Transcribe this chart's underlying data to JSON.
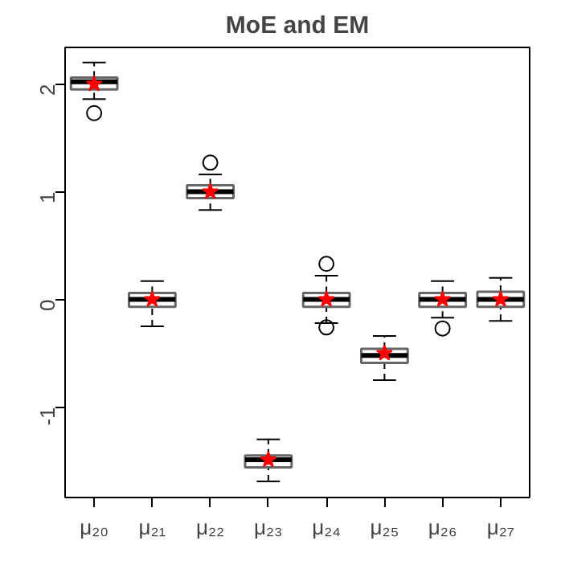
{
  "chart_data": {
    "type": "box",
    "title": "MoE and EM",
    "categories": [
      "μ₂₀",
      "μ₂₁",
      "μ₂₂",
      "μ₂₃",
      "μ₂₄",
      "μ₂₅",
      "μ₂₆",
      "μ₂₇"
    ],
    "ylim": [
      -1.84,
      2.34
    ],
    "yticks": [
      -1,
      0,
      1,
      2
    ],
    "marker": "star",
    "boxes": [
      {
        "low": 1.86,
        "q1": 1.95,
        "median": 2.02,
        "q3": 2.06,
        "high": 2.2,
        "mean": 2.0,
        "outliers": [
          1.73
        ]
      },
      {
        "low": -0.25,
        "q1": -0.07,
        "median": 0.0,
        "q3": 0.06,
        "high": 0.17,
        "mean": 0.0
      },
      {
        "low": 0.83,
        "q1": 0.94,
        "median": 1.0,
        "q3": 1.06,
        "high": 1.16,
        "mean": 1.0,
        "outliers": [
          1.27
        ]
      },
      {
        "low": -1.69,
        "q1": -1.56,
        "median": -1.49,
        "q3": -1.45,
        "high": -1.3,
        "mean": -1.49
      },
      {
        "low": -0.22,
        "q1": -0.07,
        "median": 0.0,
        "q3": 0.06,
        "high": 0.22,
        "mean": 0.0,
        "outliers": [
          0.33,
          -0.26
        ]
      },
      {
        "low": -0.75,
        "q1": -0.59,
        "median": -0.52,
        "q3": -0.46,
        "high": -0.34,
        "mean": -0.5
      },
      {
        "low": -0.17,
        "q1": -0.07,
        "median": 0.0,
        "q3": 0.06,
        "high": 0.17,
        "mean": 0.0,
        "outliers": [
          -0.27
        ]
      },
      {
        "low": -0.2,
        "q1": -0.07,
        "median": 0.0,
        "q3": 0.07,
        "high": 0.2,
        "mean": 0.0
      }
    ]
  }
}
